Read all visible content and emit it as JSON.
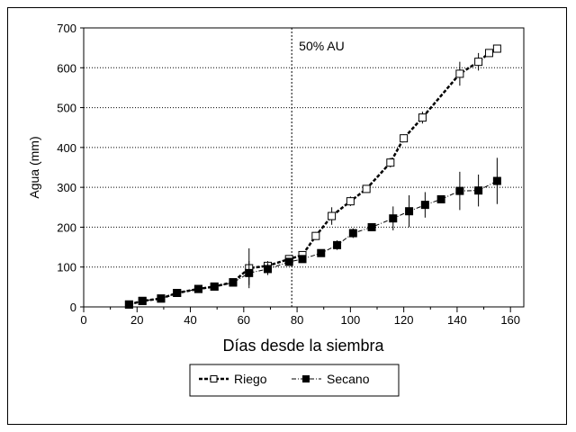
{
  "chart_data": {
    "type": "line",
    "xlabel": "Días desde la siembra",
    "ylabel": "Agua (mm)",
    "xlim": [
      0,
      165
    ],
    "ylim": [
      0,
      700
    ],
    "xticks": [
      0,
      20,
      40,
      60,
      80,
      100,
      120,
      140,
      160
    ],
    "xticks_minor": [
      10,
      30,
      50,
      70,
      90,
      110,
      130,
      150
    ],
    "yticks": [
      0,
      100,
      200,
      300,
      400,
      500,
      600,
      700
    ],
    "grid": "horizontal dotted",
    "legend_position": "bottom-center",
    "annotation": {
      "x": 78,
      "text": "50% AU"
    },
    "series": [
      {
        "name": "Riego",
        "marker": "open-square",
        "line": "dashed-thick",
        "color": "#000000",
        "x": [
          17,
          22,
          29,
          35,
          43,
          49,
          56,
          62,
          69,
          77,
          82,
          87,
          93,
          100,
          106,
          115,
          120,
          127,
          141,
          148,
          152,
          155
        ],
        "y": [
          6,
          15,
          21,
          35,
          45,
          51,
          62,
          97,
          103,
          120,
          130,
          178,
          228,
          265,
          296,
          362,
          423,
          475,
          585,
          615,
          637,
          648
        ],
        "err": [
          0,
          0,
          0,
          0,
          0,
          0,
          0,
          50,
          12,
          10,
          0,
          10,
          22,
          12,
          8,
          12,
          10,
          15,
          30,
          22,
          0,
          8
        ]
      },
      {
        "name": "Secano",
        "marker": "filled-square",
        "line": "dash-dot-thin",
        "color": "#000000",
        "x": [
          17,
          22,
          29,
          35,
          43,
          49,
          56,
          62,
          69,
          77,
          82,
          89,
          95,
          101,
          108,
          116,
          122,
          128,
          134,
          141,
          148,
          155
        ],
        "y": [
          6,
          15,
          21,
          35,
          45,
          51,
          61,
          85,
          95,
          113,
          120,
          135,
          155,
          185,
          200,
          222,
          240,
          256,
          270,
          291,
          292,
          316
        ],
        "err": [
          0,
          0,
          0,
          0,
          0,
          0,
          0,
          30,
          15,
          8,
          0,
          6,
          12,
          12,
          10,
          30,
          40,
          32,
          0,
          48,
          40,
          58
        ]
      }
    ]
  }
}
